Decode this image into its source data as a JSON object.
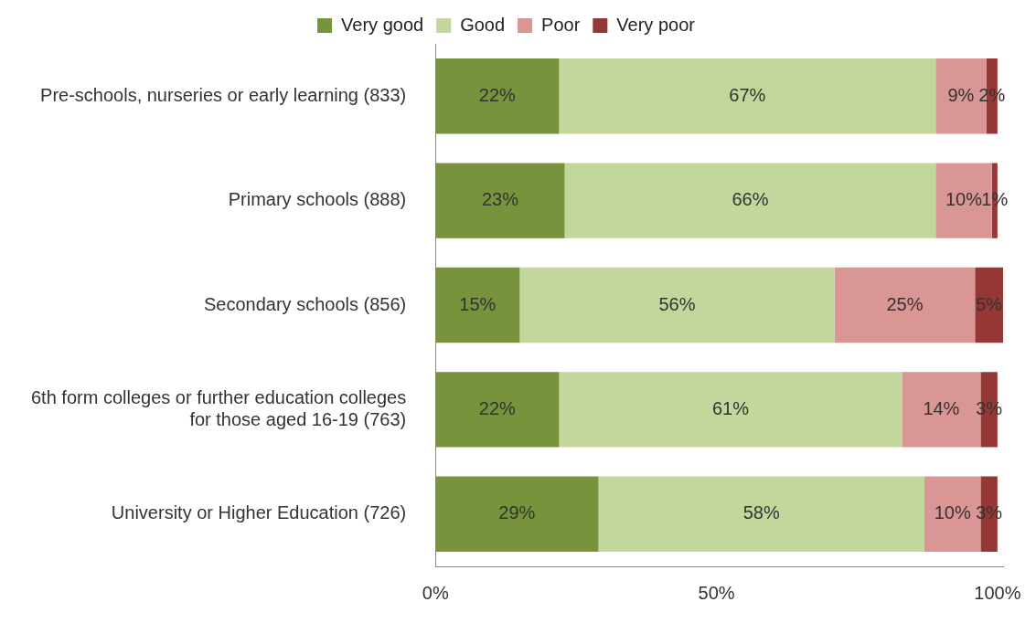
{
  "chart_data": {
    "type": "bar",
    "orientation": "horizontal",
    "stacked": true,
    "categories": [
      "Pre-schools, nurseries or early learning (833)",
      "Primary schools (888)",
      "Secondary schools (856)",
      "6th form colleges or further education colleges\nfor those aged 16-19 (763)",
      "University or Higher Education (726)"
    ],
    "series": [
      {
        "name": "Very good",
        "color": "#77933c",
        "values": [
          22,
          23,
          15,
          22,
          29
        ],
        "value_labels": [
          "22%",
          "23%",
          "15%",
          "22%",
          "29%"
        ]
      },
      {
        "name": "Good",
        "color": "#c3d69b",
        "values": [
          67,
          66,
          56,
          61,
          58
        ],
        "value_labels": [
          "67%",
          "66%",
          "56%",
          "61%",
          "58%"
        ]
      },
      {
        "name": "Poor",
        "color": "#d99694",
        "values": [
          9,
          10,
          25,
          14,
          10
        ],
        "value_labels": [
          "9%",
          "10%",
          "25%",
          "14%",
          "10%"
        ]
      },
      {
        "name": "Very poor",
        "color": "#953735",
        "values": [
          2,
          1,
          5,
          3,
          3
        ],
        "value_labels": [
          "2%",
          "1%",
          "5%",
          "3%",
          "3%"
        ]
      }
    ],
    "xlim": [
      0,
      101
    ],
    "xticks": [
      {
        "value": 0,
        "label": "0%"
      },
      {
        "value": 50,
        "label": "50%"
      },
      {
        "value": 100,
        "label": "100%"
      }
    ],
    "legend": "top",
    "grid": false
  }
}
